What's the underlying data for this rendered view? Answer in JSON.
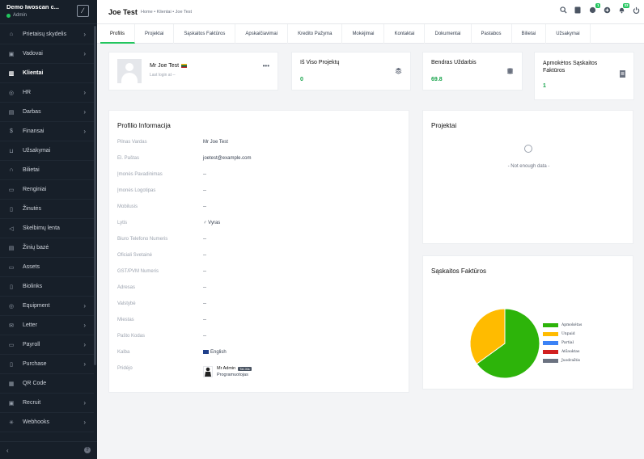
{
  "sidebar": {
    "company": "Demo Iwoscan c...",
    "role": "Admin",
    "items": [
      {
        "label": "Prietaisų skydelis",
        "icon": "home-icon",
        "chevron": true
      },
      {
        "label": "Vadovai",
        "icon": "id-card-icon",
        "chevron": true
      },
      {
        "label": "Klientai",
        "icon": "chart-icon",
        "chevron": false,
        "active": true
      },
      {
        "label": "HR",
        "icon": "users-icon",
        "chevron": true
      },
      {
        "label": "Darbas",
        "icon": "briefcase-icon",
        "chevron": true
      },
      {
        "label": "Finansai",
        "icon": "dollar-icon",
        "chevron": true
      },
      {
        "label": "Užsakymai",
        "icon": "cart-icon",
        "chevron": false
      },
      {
        "label": "Bilietai",
        "icon": "headset-icon",
        "chevron": false
      },
      {
        "label": "Renginiai",
        "icon": "calendar-icon",
        "chevron": false
      },
      {
        "label": "Žinutės",
        "icon": "message-icon",
        "chevron": false
      },
      {
        "label": "Skelbimų lenta",
        "icon": "megaphone-icon",
        "chevron": false
      },
      {
        "label": "Žinių bazė",
        "icon": "document-icon",
        "chevron": false
      },
      {
        "label": "Assets",
        "icon": "monitor-icon",
        "chevron": false
      },
      {
        "label": "Biolinks",
        "icon": "file-icon",
        "chevron": false
      },
      {
        "label": "Equipment",
        "icon": "gear-icon",
        "chevron": true
      },
      {
        "label": "Letter",
        "icon": "mail-icon",
        "chevron": true
      },
      {
        "label": "Payroll",
        "icon": "wallet-icon",
        "chevron": true
      },
      {
        "label": "Purchase",
        "icon": "receipt-icon",
        "chevron": true
      },
      {
        "label": "QR Code",
        "icon": "qr-icon",
        "chevron": false
      },
      {
        "label": "Recruit",
        "icon": "recruit-icon",
        "chevron": true
      },
      {
        "label": "Webhooks",
        "icon": "webhook-icon",
        "chevron": true
      }
    ]
  },
  "header": {
    "title": "Joe Test",
    "breadcrumb": "Home • Klientai • Joe Test",
    "badges": {
      "notes": "1",
      "notifications": "33"
    }
  },
  "tabs": [
    "Profilis",
    "Projektai",
    "Sąskaitos Faktūros",
    "Apskaičiavimai",
    "Kredito Pažyma",
    "Mokėjimai",
    "Kontaktai",
    "Dokumentai",
    "Pastabos",
    "Bilietai",
    "Užsakymai"
  ],
  "profile": {
    "name": "Mr Joe Test",
    "last_login": "Last login at --"
  },
  "stats": [
    {
      "title": "Iš Viso Projektų",
      "value": "0",
      "icon": "layers-icon"
    },
    {
      "title": "Bendras Uždarbis",
      "value": "69.8",
      "icon": "coins-icon"
    },
    {
      "title": "Apmokėtos Sąskaitos Faktūros",
      "value": "1",
      "icon": "invoice-icon"
    }
  ],
  "info": {
    "title": "Profilio Informacija",
    "rows": [
      {
        "label": "Pilnas Vardas",
        "value": "Mr Joe Test"
      },
      {
        "label": "El. Paštas",
        "value": "joetest@example.com"
      },
      {
        "label": "Įmonės Pavadinimas",
        "value": "--"
      },
      {
        "label": "Įmonės Logotipas",
        "value": "--"
      },
      {
        "label": "Mobilusis",
        "value": "--"
      },
      {
        "label": "Lytis",
        "value": "♂ Vyras"
      },
      {
        "label": "Biuro Telefono Numeris",
        "value": "--"
      },
      {
        "label": "Oficiali Svetainė",
        "value": "--"
      },
      {
        "label": "GST/PVM Numeris",
        "value": "--"
      },
      {
        "label": "Adresas",
        "value": "--"
      },
      {
        "label": "Valstybė",
        "value": "--"
      },
      {
        "label": "Miestas",
        "value": "--"
      },
      {
        "label": "Pašto Kodas",
        "value": "--"
      },
      {
        "label": "Kalba",
        "value": "English"
      },
      {
        "label": "Pridėjo",
        "value": "Mr Admin"
      }
    ],
    "added_by_badge": "Tai Jūs",
    "added_by_role": "Programuotojas"
  },
  "projects": {
    "title": "Projektai",
    "empty": "- Not enough data -"
  },
  "invoices": {
    "title": "Sąskaitos Faktūros",
    "legend": [
      {
        "label": "Apmokėtas",
        "color": "#2db40a"
      },
      {
        "label": "Unpaid",
        "color": "#ffbb00"
      },
      {
        "label": "Partial",
        "color": "#3b82f6"
      },
      {
        "label": "Atšauktas",
        "color": "#d11f1f"
      },
      {
        "label": "Juodraštis",
        "color": "#6b7280"
      }
    ],
    "chart_data": {
      "type": "pie",
      "categories": [
        "Apmokėtas",
        "Unpaid",
        "Partial",
        "Atšauktas",
        "Juodraštis"
      ],
      "values": [
        65,
        35,
        0,
        0,
        0
      ],
      "colors": [
        "#2db40a",
        "#ffbb00",
        "#3b82f6",
        "#d11f1f",
        "#6b7280"
      ]
    }
  }
}
